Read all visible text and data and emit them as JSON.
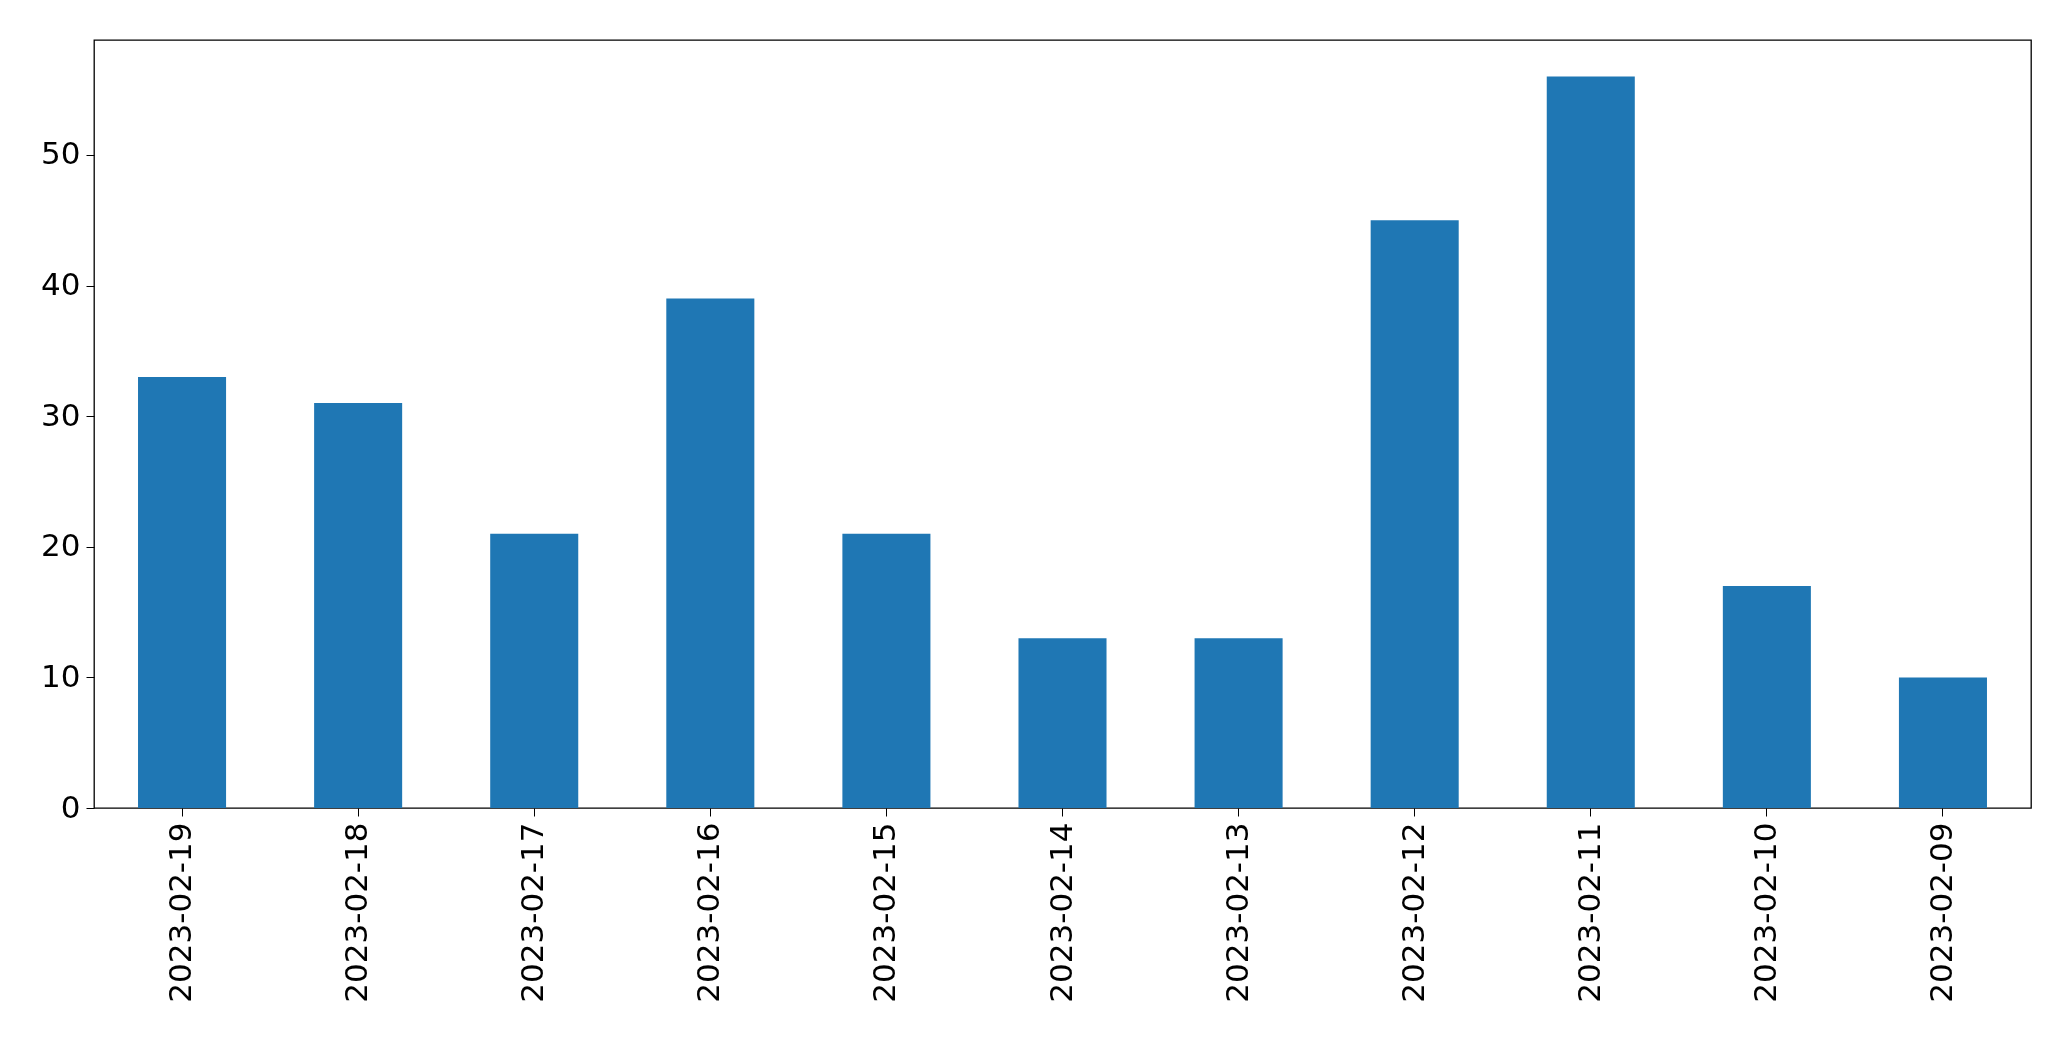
{
  "chart_data": {
    "type": "bar",
    "categories": [
      "2023-02-19",
      "2023-02-18",
      "2023-02-17",
      "2023-02-16",
      "2023-02-15",
      "2023-02-14",
      "2023-02-13",
      "2023-02-12",
      "2023-02-11",
      "2023-02-10",
      "2023-02-09"
    ],
    "values": [
      33,
      31,
      21,
      39,
      21,
      13,
      13,
      45,
      56,
      17,
      10
    ],
    "color": "#1f77b4",
    "ylim": [
      0,
      58.8
    ],
    "yticks": [
      0,
      10,
      20,
      30,
      40,
      50
    ]
  }
}
